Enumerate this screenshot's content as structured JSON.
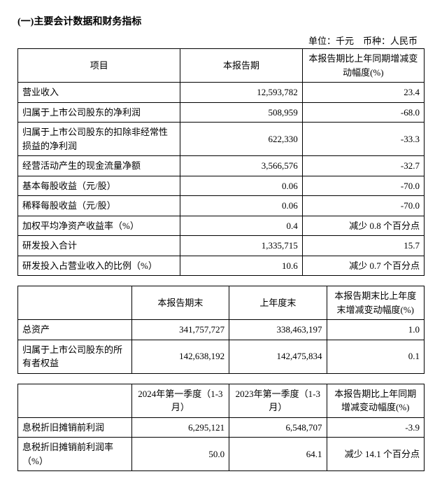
{
  "title": "(一)主要会计数据和财务指标",
  "unit_line": "单位：千元　币种：人民币",
  "table1": {
    "headers": {
      "item": "项目",
      "current": "本报告期",
      "change": "本报告期比上年同期增减变动幅度(%)"
    },
    "rows": [
      {
        "label": "营业收入",
        "v1": "12,593,782",
        "v2": "23.4"
      },
      {
        "label": "归属于上市公司股东的净利润",
        "v1": "508,959",
        "v2": "-68.0"
      },
      {
        "label": "归属于上市公司股东的扣除非经常性损益的净利润",
        "v1": "622,330",
        "v2": "-33.3"
      },
      {
        "label": "经营活动产生的现金流量净额",
        "v1": "3,566,576",
        "v2": "-32.7"
      },
      {
        "label": "基本每股收益（元/股）",
        "v1": "0.06",
        "v2": "-70.0"
      },
      {
        "label": "稀释每股收益（元/股）",
        "v1": "0.06",
        "v2": "-70.0"
      },
      {
        "label": "加权平均净资产收益率（%）",
        "v1": "0.4",
        "v2": "减少 0.8 个百分点"
      },
      {
        "label": "研发投入合计",
        "v1": "1,335,715",
        "v2": "15.7"
      },
      {
        "label": "研发投入占营业收入的比例（%）",
        "v1": "10.6",
        "v2": "减少 0.7 个百分点"
      }
    ]
  },
  "table2": {
    "headers": {
      "blank": "",
      "c1": "本报告期末",
      "c2": "上年度末",
      "c3": "本报告期末比上年度末增减变动幅度(%)"
    },
    "rows": [
      {
        "label": "总资产",
        "v1": "341,757,727",
        "v2": "338,463,197",
        "v3": "1.0"
      },
      {
        "label": "归属于上市公司股东的所有者权益",
        "v1": "142,638,192",
        "v2": "142,475,834",
        "v3": "0.1"
      }
    ]
  },
  "table3": {
    "headers": {
      "blank": "",
      "c1": "2024年第一季度（1-3月）",
      "c2": "2023年第一季度（1-3月）",
      "c3": "本报告期比上年同期增减变动幅度(%)"
    },
    "rows": [
      {
        "label": "息税折旧摊销前利润",
        "v1": "6,295,121",
        "v2": "6,548,707",
        "v3": "-3.9"
      },
      {
        "label": "息税折旧摊销前利润率（%）",
        "v1": "50.0",
        "v2": "64.1",
        "v3": "减少 14.1 个百分点"
      }
    ]
  }
}
